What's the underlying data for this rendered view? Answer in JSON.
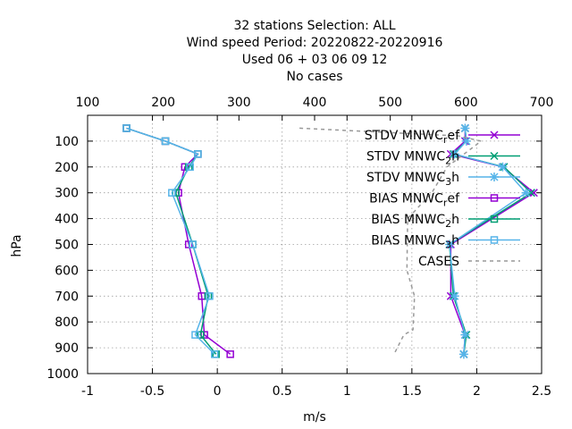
{
  "chart_data": {
    "type": "line",
    "title_lines": [
      "32 stations Selection: ALL",
      "Wind speed  Period: 20220822-20220916",
      "Used  06 + 03 06 09 12",
      "No cases"
    ],
    "xlabel": "m/s",
    "ylabel": "hPa",
    "xlim": [
      -1,
      2.5
    ],
    "ylim": [
      1000,
      0
    ],
    "x_ticks": [
      "-1",
      "-0.5",
      "0",
      "0.5",
      "1",
      "1.5",
      "2",
      "2.5"
    ],
    "y_ticks": [
      "100",
      "200",
      "300",
      "400",
      "500",
      "600",
      "700",
      "800",
      "900",
      "1000"
    ],
    "x2lim": [
      100,
      700
    ],
    "x2_ticks": [
      "100",
      "200",
      "300",
      "400",
      "500",
      "600",
      "700"
    ],
    "grid": true,
    "legend_position": "top-right",
    "colors": {
      "ref": "#9400d3",
      "h2": "#009e73",
      "h3": "#56b4e9",
      "cases": "#999999"
    },
    "levels": [
      50,
      100,
      150,
      200,
      300,
      500,
      700,
      850,
      925
    ],
    "series": [
      {
        "key": "stdv_ref",
        "label_base": "STDV MNWC",
        "label_sub": "r",
        "label_tail": "ef",
        "color": "#9400d3",
        "marker": "x",
        "dashed": false,
        "x": [
          1.91,
          1.91,
          1.8,
          2.2,
          2.44,
          1.8,
          1.8,
          1.91,
          1.9
        ],
        "y": [
          50,
          100,
          150,
          200,
          300,
          500,
          700,
          850,
          925
        ]
      },
      {
        "key": "stdv_2h",
        "label_base": "STDV MNWC",
        "label_sub": "2",
        "label_tail": "h",
        "color": "#009e73",
        "marker": "x",
        "dashed": false,
        "x": [
          1.91,
          1.92,
          1.82,
          2.21,
          2.42,
          1.79,
          1.82,
          1.92,
          1.9
        ],
        "y": [
          50,
          100,
          150,
          200,
          300,
          500,
          700,
          850,
          925
        ]
      },
      {
        "key": "stdv_3h",
        "label_base": "STDV MNWC",
        "label_sub": "3",
        "label_tail": "h",
        "color": "#56b4e9",
        "marker": "star",
        "dashed": false,
        "x": [
          1.91,
          1.92,
          1.83,
          2.2,
          2.38,
          1.79,
          1.83,
          1.91,
          1.9
        ],
        "y": [
          50,
          100,
          150,
          200,
          300,
          500,
          700,
          850,
          925
        ]
      },
      {
        "key": "bias_ref",
        "label_base": "BIAS MNWC",
        "label_sub": "r",
        "label_tail": "ef",
        "color": "#9400d3",
        "marker": "square",
        "dashed": false,
        "x": [
          -0.7,
          -0.4,
          -0.15,
          -0.25,
          -0.3,
          -0.22,
          -0.12,
          -0.1,
          0.1
        ],
        "y": [
          50,
          100,
          150,
          200,
          300,
          500,
          700,
          850,
          925
        ]
      },
      {
        "key": "bias_2h",
        "label_base": "BIAS MNWC",
        "label_sub": "2",
        "label_tail": "h",
        "color": "#009e73",
        "marker": "square",
        "dashed": false,
        "x": [
          -0.7,
          -0.4,
          -0.15,
          -0.22,
          -0.32,
          -0.19,
          -0.07,
          -0.13,
          -0.01
        ],
        "y": [
          50,
          100,
          150,
          200,
          300,
          500,
          700,
          850,
          925
        ]
      },
      {
        "key": "bias_3h",
        "label_base": "BIAS MNWC",
        "label_sub": "3",
        "label_tail": "h",
        "color": "#56b4e9",
        "marker": "square",
        "dashed": false,
        "x": [
          -0.7,
          -0.4,
          -0.15,
          -0.21,
          -0.35,
          -0.19,
          -0.06,
          -0.17,
          -0.02
        ],
        "y": [
          50,
          100,
          150,
          200,
          300,
          500,
          700,
          850,
          925
        ]
      },
      {
        "key": "cases",
        "label_base": "CASES",
        "label_sub": "",
        "label_tail": "",
        "color": "#999999",
        "marker": "none",
        "dashed": true,
        "axis": "x2",
        "x": [
          380,
          590,
          620,
          575,
          555,
          523,
          522,
          532,
          530,
          518,
          505
        ],
        "y": [
          50,
          80,
          100,
          200,
          300,
          400,
          600,
          700,
          830,
          850,
          925
        ]
      }
    ]
  }
}
